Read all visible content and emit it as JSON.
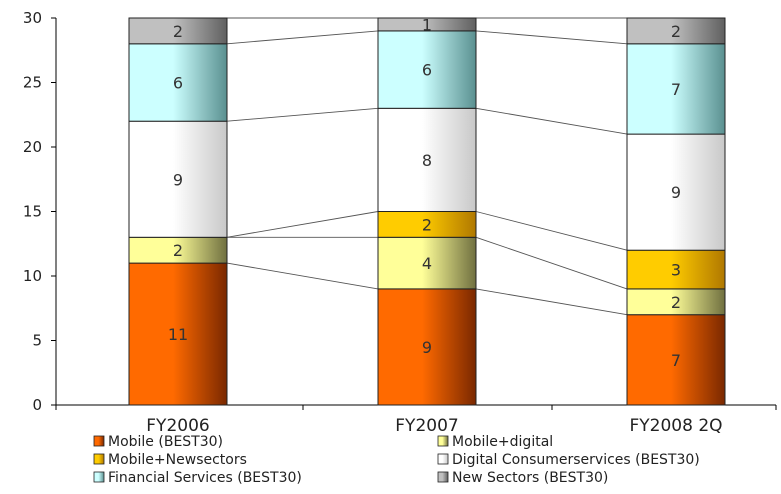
{
  "chart_data": {
    "type": "bar",
    "stacked": true,
    "categories": [
      "FY2006",
      "FY2007",
      "FY2008 2Q"
    ],
    "ylim": [
      0,
      30
    ],
    "yticks": [
      0,
      5,
      10,
      15,
      20,
      25,
      30
    ],
    "grid": false,
    "legend_position": "bottom",
    "series": [
      {
        "name": "Mobile (BEST30)",
        "values": [
          11,
          9,
          7
        ],
        "color": "#ff6a00",
        "dark": "#7a2800",
        "legend_col": 0
      },
      {
        "name": "Mobile+digital",
        "values": [
          2,
          4,
          2
        ],
        "color": "#ffff99",
        "dark": "#707040",
        "legend_col": 1
      },
      {
        "name": "Mobile+Newsectors",
        "values": [
          0,
          2,
          3
        ],
        "color": "#ffcc00",
        "dark": "#b07800",
        "legend_col": 0
      },
      {
        "name": "Digital Consumerservices (BEST30)",
        "values": [
          9,
          8,
          9
        ],
        "color": "#ffffff",
        "dark": "#c8c8c8",
        "legend_col": 1
      },
      {
        "name": "Financial Services (BEST30)",
        "values": [
          6,
          6,
          7
        ],
        "color": "#ccffff",
        "dark": "#5a9090",
        "legend_col": 0
      },
      {
        "name": "New Sectors (BEST30)",
        "values": [
          2,
          1,
          2
        ],
        "color": "#c0c0c0",
        "dark": "#606060",
        "legend_col": 1
      }
    ]
  }
}
